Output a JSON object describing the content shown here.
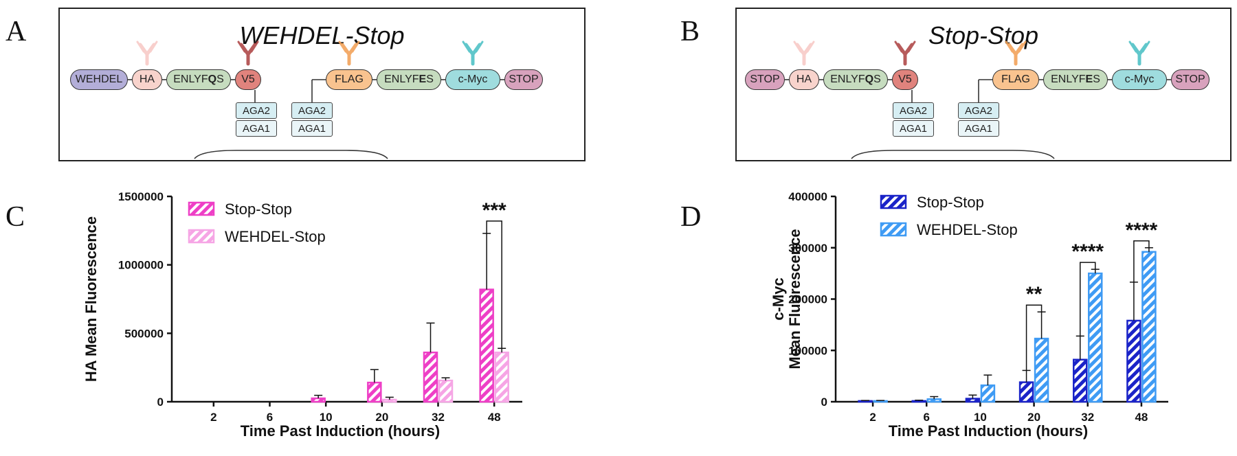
{
  "panels": {
    "a": {
      "letter": "A",
      "title": "WEHDEL-Stop",
      "domains": [
        "WEHDEL",
        "HA",
        "ENLYFQS",
        "V5",
        "FLAG",
        "ENLYFES",
        "c-Myc",
        "STOP"
      ],
      "aga2": "AGA2",
      "aga1": "AGA1"
    },
    "b": {
      "letter": "B",
      "title": "Stop-Stop",
      "domains": [
        "STOP",
        "HA",
        "ENLYFQS",
        "V5",
        "FLAG",
        "ENLYFES",
        "c-Myc",
        "STOP"
      ],
      "aga2": "AGA2",
      "aga1": "AGA1"
    },
    "c": {
      "letter": "C"
    },
    "d": {
      "letter": "D"
    }
  },
  "colors": {
    "wehdel": "#b3aed8",
    "ha": "#f8d3cc",
    "enlyf": "#c6dcbf",
    "v5": "#e0837d",
    "flag": "#f9c38f",
    "cmyc": "#9fdcde",
    "stop": "#d8a2bd",
    "pink_dark": "#ee3fc6",
    "pink_light": "#f6a5e5",
    "blue_dark": "#1a23c8",
    "blue_light": "#3f9bf4"
  },
  "chart_data": [
    {
      "type": "bar",
      "categories": [
        "2",
        "6",
        "10",
        "20",
        "32",
        "48"
      ],
      "xlabel": "Time Past Induction (hours)",
      "ylabel": "HA Mean Fluorescence",
      "ylim": [
        0,
        1500000
      ],
      "yticks": [
        "0",
        "500000",
        "1000000",
        "1500000"
      ],
      "legend": "top-left",
      "series": [
        {
          "name": "Stop-Stop",
          "values": [
            0,
            0,
            25000,
            140000,
            360000,
            820000
          ],
          "errors": [
            0,
            0,
            22000,
            95000,
            215000,
            410000
          ]
        },
        {
          "name": "WEHDEL-Stop",
          "values": [
            0,
            0,
            0,
            15000,
            155000,
            360000
          ],
          "errors": [
            0,
            0,
            0,
            18000,
            20000,
            30000
          ]
        }
      ],
      "annotations": [
        {
          "category": "48",
          "text": "***"
        }
      ]
    },
    {
      "type": "bar",
      "categories": [
        "2",
        "6",
        "10",
        "20",
        "32",
        "48"
      ],
      "xlabel": "Time Past Induction (hours)",
      "ylabel": [
        "c-Myc",
        "Mean Fluorescence"
      ],
      "ylim": [
        0,
        400000
      ],
      "yticks": [
        "0",
        "100000",
        "200000",
        "300000",
        "400000"
      ],
      "legend": "top-left",
      "series": [
        {
          "name": "Stop-Stop",
          "values": [
            1500,
            1500,
            6000,
            38000,
            82000,
            158000
          ],
          "errors": [
            1000,
            1500,
            7000,
            23000,
            46000,
            75000
          ]
        },
        {
          "name": "WEHDEL-Stop",
          "values": [
            1500,
            5000,
            32000,
            123000,
            250000,
            292000
          ],
          "errors": [
            1000,
            5000,
            20000,
            52000,
            8000,
            8000
          ]
        }
      ],
      "annotations": [
        {
          "category": "20",
          "text": "**"
        },
        {
          "category": "32",
          "text": "****"
        },
        {
          "category": "48",
          "text": "****"
        }
      ]
    }
  ]
}
